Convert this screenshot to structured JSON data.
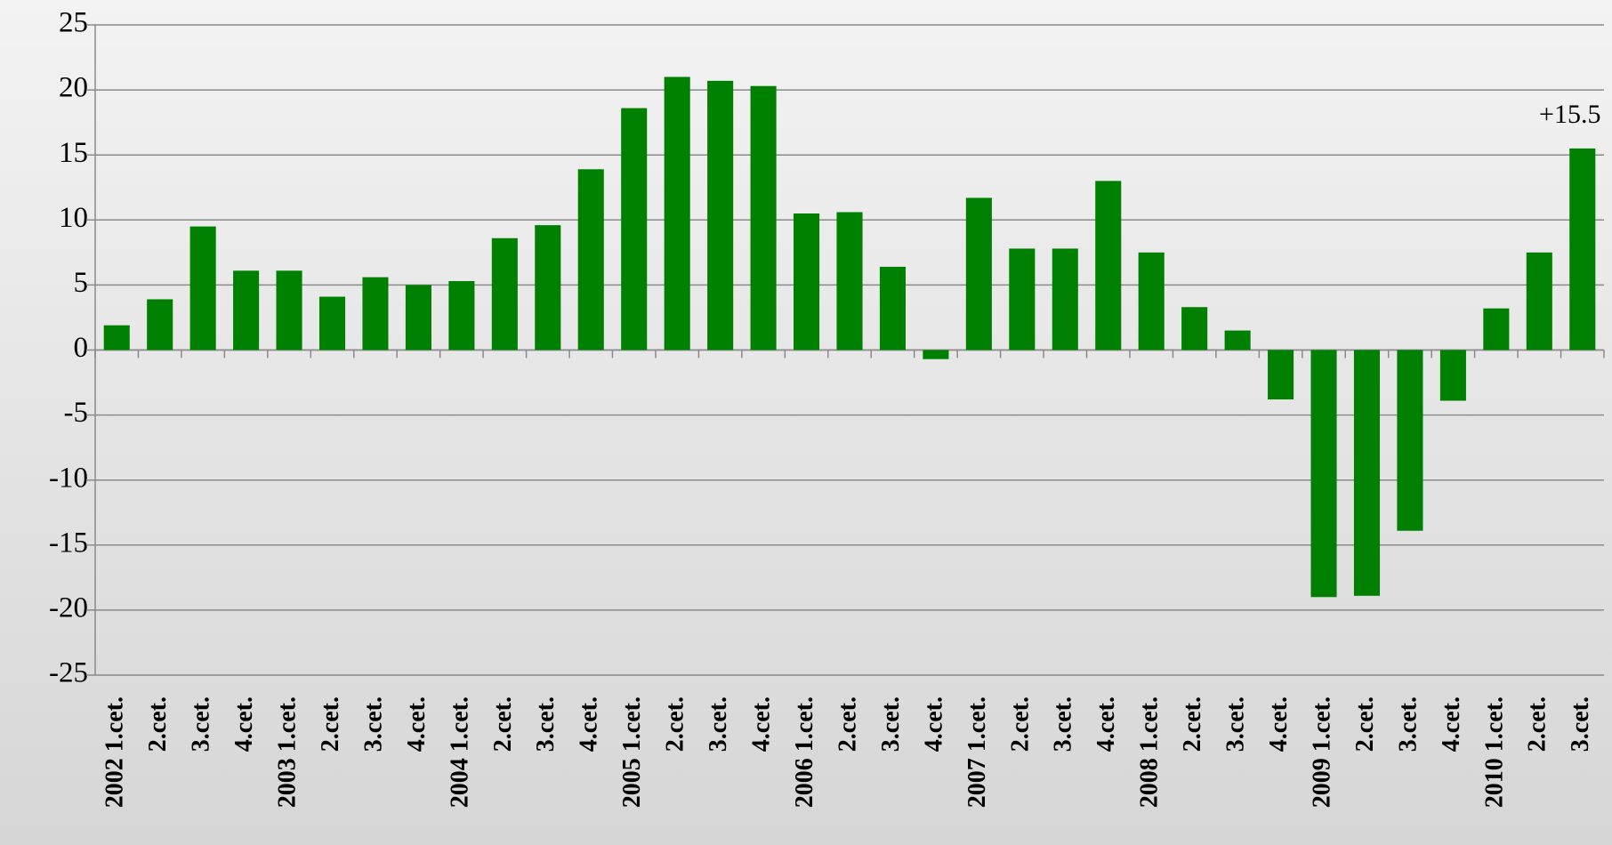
{
  "chart_data": {
    "type": "bar",
    "categories": [
      "2002 1.cet.",
      "2.cet.",
      "3.cet.",
      "4.cet.",
      "2003 1.cet.",
      "2.cet.",
      "3.cet.",
      "4.cet.",
      "2004 1.cet.",
      "2.cet.",
      "3.cet.",
      "4.cet.",
      "2005 1.cet.",
      "2.cet.",
      "3.cet.",
      "4.cet.",
      "2006 1.cet.",
      "2.cet.",
      "3.cet.",
      "4.cet.",
      "2007 1.cet.",
      "2.cet.",
      "3.cet.",
      "4.cet.",
      "2008 1.cet.",
      "2.cet.",
      "3.cet.",
      "4.cet.",
      "2009 1.cet.",
      "2.cet.",
      "3.cet.",
      "4.cet.",
      "2010 1.cet.",
      "2.cet.",
      "3.cet."
    ],
    "values": [
      1.9,
      3.9,
      9.5,
      6.1,
      6.1,
      4.1,
      5.6,
      5.0,
      5.3,
      8.6,
      9.6,
      13.9,
      18.6,
      21.0,
      20.7,
      20.3,
      10.5,
      10.6,
      6.4,
      -0.7,
      11.7,
      7.8,
      7.8,
      13.0,
      7.5,
      3.3,
      1.5,
      -3.8,
      -19.0,
      -18.9,
      -13.9,
      -3.9,
      3.2,
      7.5,
      15.5
    ],
    "value_labels": [
      null,
      null,
      null,
      null,
      null,
      null,
      null,
      null,
      null,
      null,
      null,
      null,
      null,
      null,
      null,
      null,
      null,
      null,
      null,
      null,
      null,
      null,
      null,
      null,
      null,
      null,
      null,
      null,
      null,
      null,
      null,
      null,
      null,
      null,
      "+15.5"
    ],
    "color": "#008000",
    "ylim": [
      -25,
      25
    ],
    "yticks": [
      -25,
      -20,
      -15,
      -10,
      -5,
      0,
      5,
      10,
      15,
      20,
      25
    ],
    "grid": true
  }
}
